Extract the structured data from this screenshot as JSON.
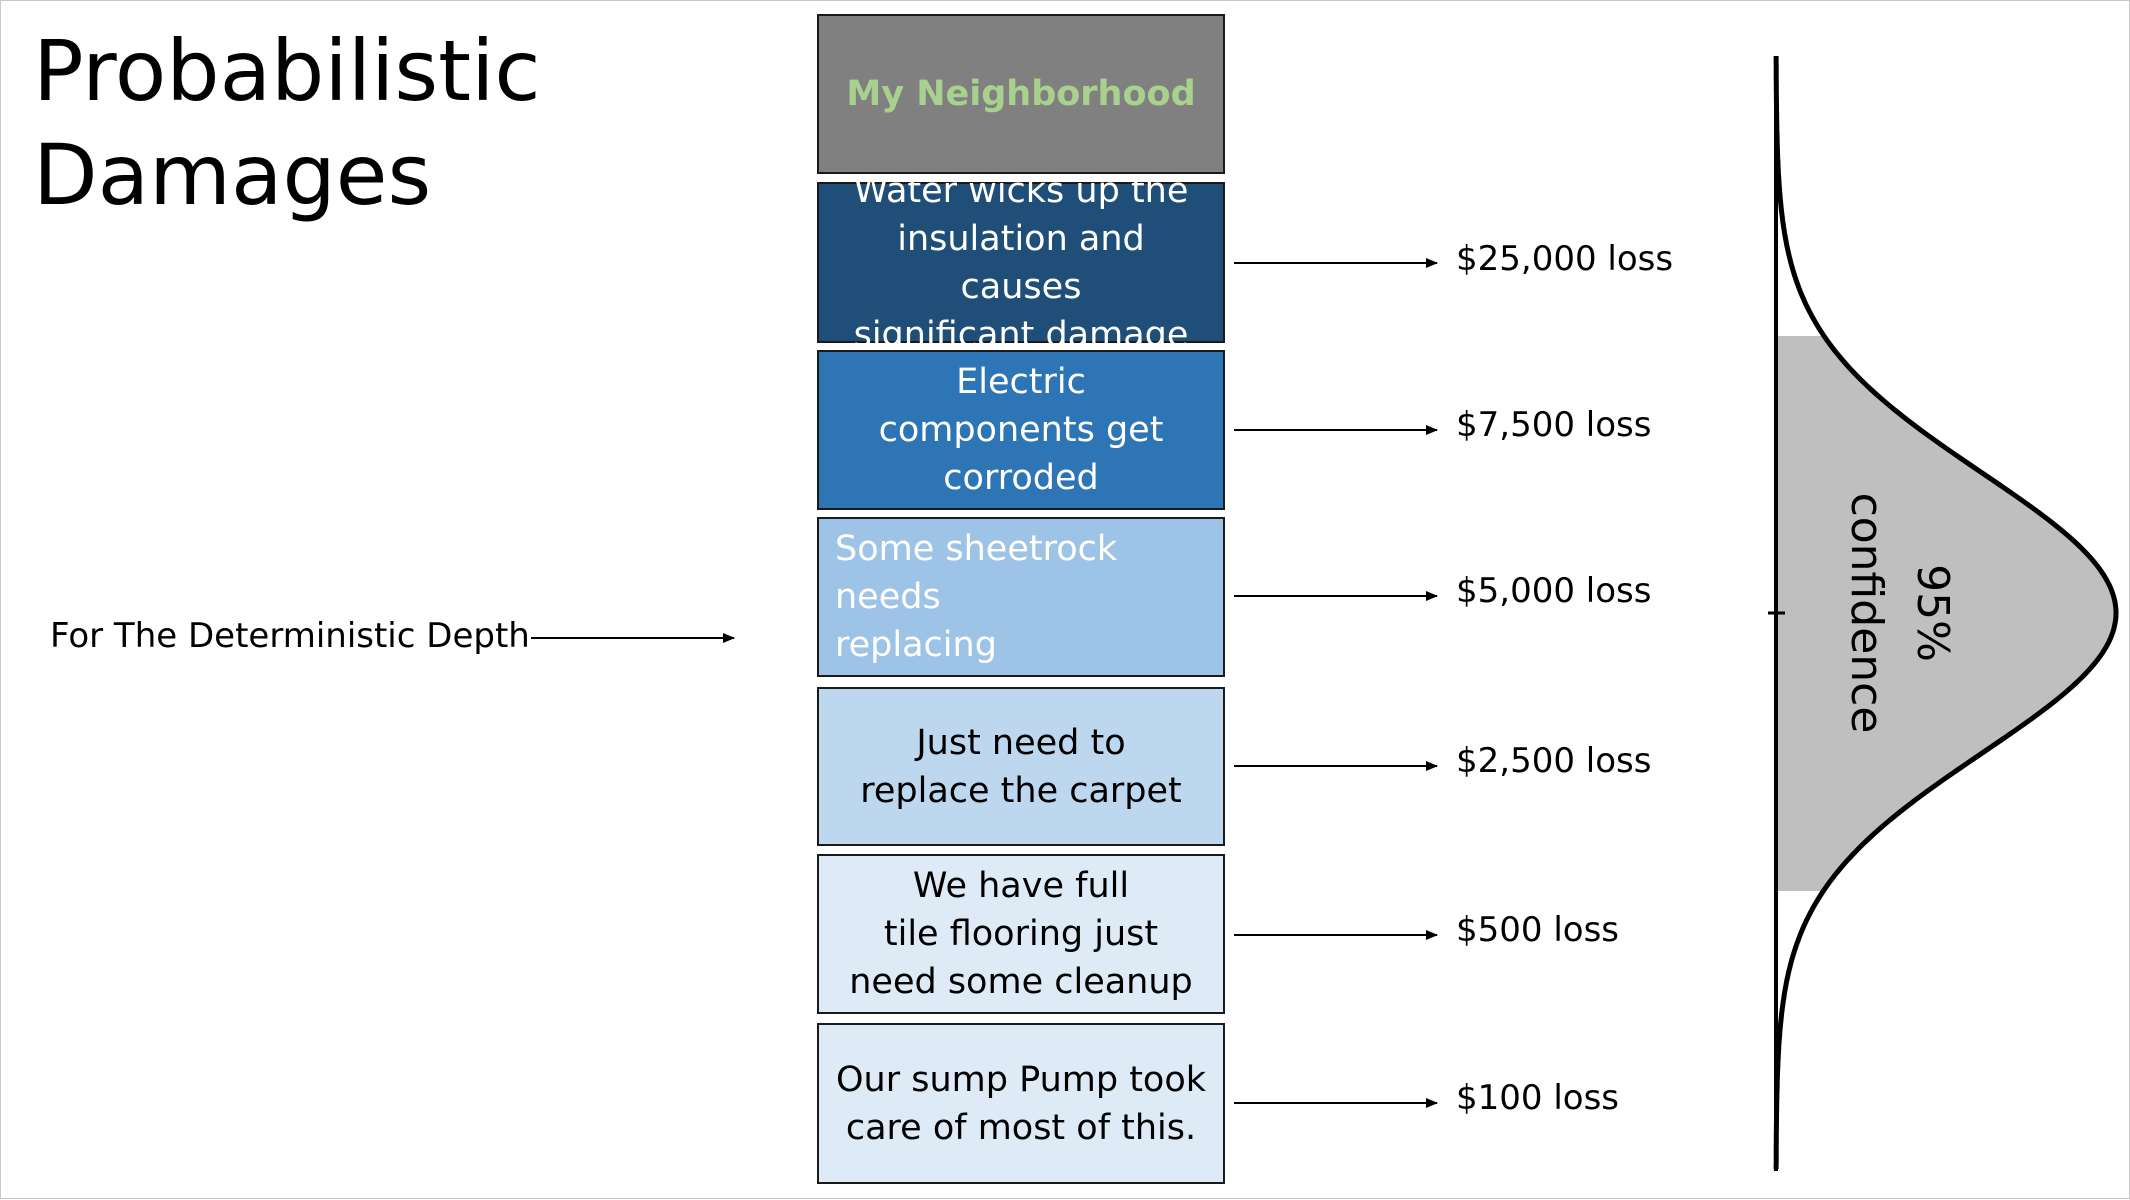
{
  "title": [
    "Probabilistic",
    "Damages"
  ],
  "side_label": "For The Deterministic Depth",
  "header_box": {
    "label": "My Neighborhood",
    "bg": "#808080",
    "text_color": "#a9d18e"
  },
  "levels": [
    {
      "lines": [
        "Water wicks up the",
        "insulation and causes",
        "significant damage"
      ],
      "loss": "$25,000 loss",
      "bg": "#1f4e79",
      "text_color": "#ffffff"
    },
    {
      "lines": [
        "Electric",
        "components get",
        "corroded"
      ],
      "loss": "$7,500 loss",
      "bg": "#2e75b6",
      "text_color": "#ffffff"
    },
    {
      "lines": [
        "Some sheetrock needs",
        "replacing"
      ],
      "loss": "$5,000 loss",
      "bg": "#9dc3e6",
      "text_color": "#ffffff"
    },
    {
      "lines": [
        "Just need to",
        "replace the carpet"
      ],
      "loss": "$2,500 loss",
      "bg": "#bdd7ee",
      "text_color": "#000000"
    },
    {
      "lines": [
        "We have full",
        "tile flooring just",
        "need some cleanup"
      ],
      "loss": "$500 loss",
      "bg": "#deebf7",
      "text_color": "#000000"
    },
    {
      "lines": [
        "Our sump Pump took",
        "care of most of this."
      ],
      "loss": "$100 loss",
      "bg": "#deebf7",
      "text_color": "#000000"
    }
  ],
  "distribution": {
    "confidence_label": [
      "95%",
      "confidence"
    ],
    "shade_color": "#bfbfbf"
  }
}
